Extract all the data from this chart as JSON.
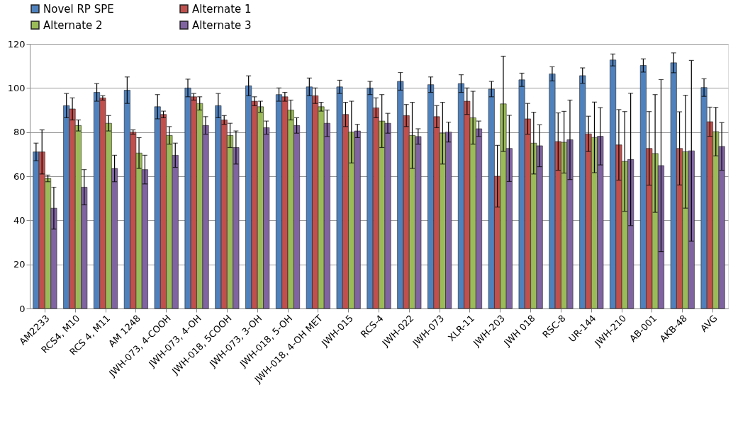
{
  "chart_data": {
    "type": "bar",
    "categories": [
      "AM2233",
      "RCS4, M10",
      "RCS 4, M11",
      "AM 1248",
      "JWH-073, 4-COOH",
      "JWH-073, 4-OH",
      "JWH-018, 5COOH",
      "JWH-073, 3-OH",
      "JWH-018, 5-OH",
      "JWH-018, 4-OH MET",
      "JWH-015",
      "RCS-4",
      "JWH-022",
      "JWH-073",
      "XLR-11",
      "JWH-203",
      "JWH 018",
      "RSC-8",
      "UR-144",
      "JWH-210",
      "AB-001",
      "AKB-48",
      "AVG"
    ],
    "series": [
      {
        "name": "Novel RP SPE",
        "color": "#4f81bd",
        "values": [
          71,
          92,
          98,
          99,
          91.5,
          100,
          92,
          101,
          97,
          100.5,
          100.5,
          100,
          103,
          101.5,
          102,
          99.5,
          103.7,
          106.4,
          105.6,
          112.7,
          110.2,
          111.4,
          100.2
        ],
        "errors": [
          4,
          5.5,
          4,
          6,
          5.5,
          4,
          5.5,
          4.5,
          3,
          4,
          3,
          3,
          4,
          3.5,
          4,
          3.5,
          3,
          3.2,
          3.5,
          2.7,
          3,
          4.5,
          4
        ]
      },
      {
        "name": "Alternate 1",
        "color": "#c0504d",
        "values": [
          71,
          90.5,
          95.5,
          80,
          88,
          96,
          85.5,
          94,
          96,
          96.5,
          88,
          91,
          87.5,
          87,
          94,
          60,
          86,
          75.7,
          79.2,
          74.2,
          72.6,
          72.6,
          84.7
        ],
        "errors": [
          10,
          5,
          1,
          1,
          1.5,
          1.5,
          2,
          2,
          2,
          3.5,
          5.5,
          4.5,
          5,
          5,
          6,
          14,
          7,
          13,
          8,
          16,
          16.7,
          16.6,
          6.6
        ]
      },
      {
        "name": "Alternate 2",
        "color": "#9bbb59",
        "values": [
          59,
          83,
          84,
          70.5,
          78.5,
          93,
          78.5,
          91.5,
          90,
          91.5,
          80,
          85,
          78.5,
          79.5,
          86.5,
          92.8,
          75,
          75.4,
          77.6,
          66.7,
          70.3,
          71.1,
          80.2
        ],
        "errors": [
          1.5,
          2.5,
          3.5,
          7,
          4,
          3,
          5.5,
          2.5,
          4.5,
          2,
          14,
          12,
          15,
          14,
          12,
          21.6,
          14,
          14,
          16,
          22.6,
          26.7,
          25.6,
          11
        ]
      },
      {
        "name": "Alternate 3",
        "color": "#8064a2",
        "values": [
          45.5,
          55,
          63.5,
          63,
          69.5,
          83,
          73,
          82,
          83,
          84,
          80.5,
          84,
          78,
          80,
          81.5,
          72.6,
          73.8,
          76.5,
          78.1,
          67.6,
          64.8,
          71.5,
          73.5
        ],
        "errors": [
          9.5,
          8,
          6,
          6.5,
          5.5,
          4,
          7.5,
          3,
          3.5,
          6,
          3,
          4.5,
          3.5,
          4.5,
          3.5,
          15,
          9.5,
          18,
          13,
          30,
          39,
          41,
          10.8
        ]
      }
    ],
    "ylim": [
      0,
      120
    ],
    "yticks": [
      0,
      20,
      40,
      60,
      80,
      100,
      120
    ],
    "grid": "y",
    "legend": "top"
  }
}
